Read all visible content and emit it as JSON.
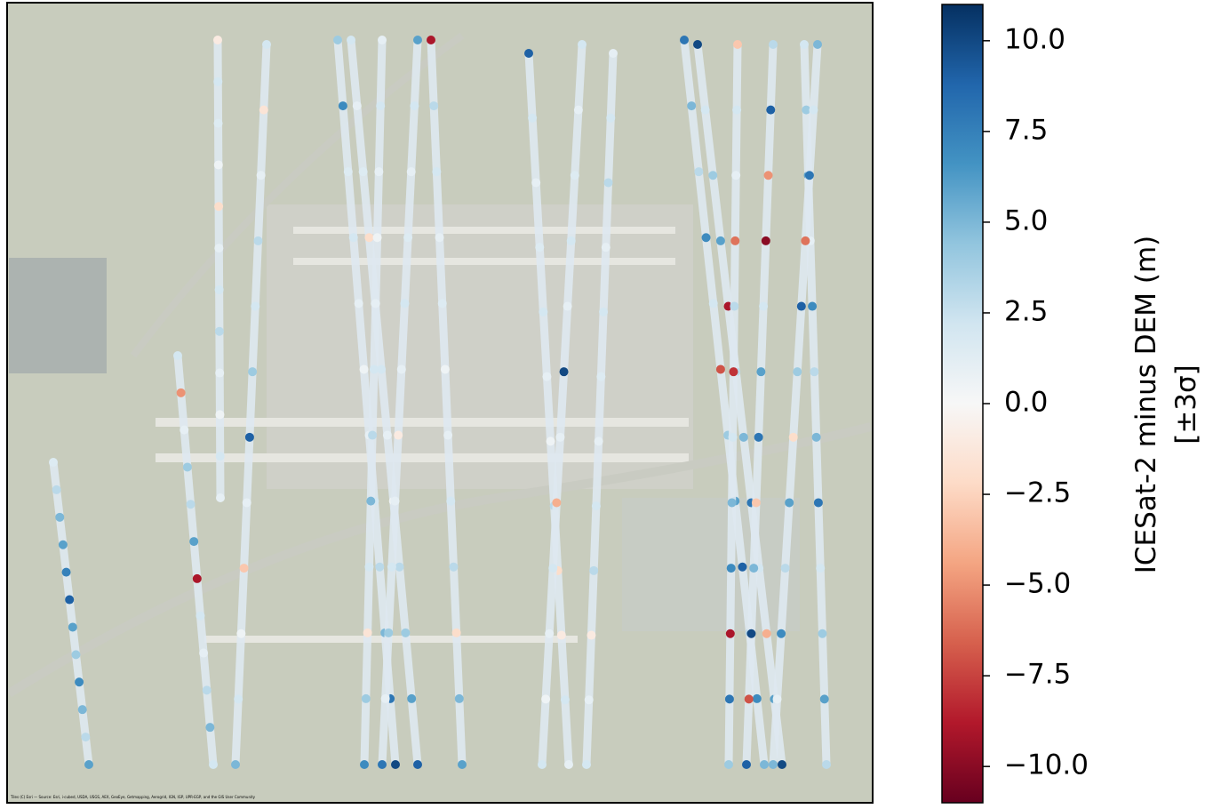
{
  "map": {
    "attribution": "Tiles (C) Esri — Source: Esri, i-cubed, USDA, USGS, AEX, GeoEye, Getmapping, Aerogrid, IGN, IGP, UPR-EGP, and the GIS User Community",
    "tracks": [
      {
        "values": [
          1.5,
          3,
          5,
          6,
          7.5,
          9,
          6,
          4,
          7,
          5,
          3,
          6
        ]
      },
      {
        "values": [
          -1,
          2,
          1.5,
          0.5,
          -2,
          1,
          2,
          3,
          1,
          0.5,
          2,
          1
        ]
      },
      {
        "values": [
          2,
          -1.5,
          1,
          3,
          2,
          4,
          9,
          1,
          -3,
          0.5,
          2,
          5
        ]
      },
      {
        "values": [
          4,
          7,
          1.5,
          2,
          1,
          0.5,
          1,
          2,
          3,
          5,
          8,
          10
        ]
      },
      {
        "values": [
          2,
          1,
          1.5,
          -2,
          1,
          2,
          1,
          0.5,
          3,
          4,
          6,
          9
        ]
      },
      {
        "values": [
          1,
          2,
          1,
          0.5,
          1,
          2,
          3,
          5,
          2,
          -1.5,
          4,
          7
        ]
      },
      {
        "values": [
          6,
          2,
          1,
          1.5,
          2,
          1,
          -1,
          1,
          2,
          4,
          1,
          8
        ]
      },
      {
        "values": [
          -9,
          3,
          2,
          1,
          1.5,
          0.5,
          1,
          2,
          3,
          -2,
          5,
          6
        ]
      },
      {
        "values": [
          9,
          2,
          1,
          1.5,
          2,
          1,
          0.5,
          3,
          -2,
          -1,
          2,
          1
        ]
      },
      {
        "values": [
          2,
          1,
          1.5,
          2,
          1,
          10,
          1,
          -4,
          2,
          1,
          0.5,
          2
        ]
      },
      {
        "values": [
          1,
          2,
          3,
          1,
          2,
          1.5,
          1,
          2,
          3,
          -1,
          1,
          2
        ]
      },
      {
        "values": [
          8,
          5,
          3,
          7,
          2,
          -7,
          4,
          6,
          9,
          3,
          7,
          5
        ]
      },
      {
        "values": [
          10,
          2,
          4,
          6,
          -9,
          3,
          5,
          8,
          2,
          -4,
          6,
          10
        ]
      },
      {
        "values": [
          -3,
          2,
          1,
          -6,
          3,
          -8,
          2,
          5,
          7,
          -9,
          8,
          4
        ]
      },
      {
        "values": [
          3,
          9,
          -5,
          -10,
          2,
          6,
          8,
          -3,
          5,
          10,
          -7,
          9
        ]
      },
      {
        "values": [
          2,
          4,
          6,
          1,
          7,
          3,
          5,
          8,
          2,
          4,
          6,
          3
        ]
      },
      {
        "values": [
          5,
          2,
          8,
          -6,
          9,
          4,
          -2,
          6,
          3,
          7,
          1,
          5
        ]
      },
      {
        "values": [
          2,
          -5,
          1,
          4,
          3,
          6,
          -9,
          2,
          1,
          3,
          5,
          2
        ]
      }
    ]
  },
  "colorbar": {
    "label_lines": [
      "ICESat-2 minus DEM (m)",
      "[±3σ]"
    ],
    "lim": [
      -11,
      11
    ],
    "colormap": [
      "#67001f",
      "#b2182b",
      "#d6604d",
      "#f4a582",
      "#fddbc7",
      "#f7f7f7",
      "#d1e5f0",
      "#92c5de",
      "#4393c3",
      "#2166ac",
      "#053061"
    ],
    "ticks": [
      {
        "value": -10,
        "label": "−10.0"
      },
      {
        "value": -7.5,
        "label": "−7.5"
      },
      {
        "value": -5,
        "label": "−5.0"
      },
      {
        "value": -2.5,
        "label": "−2.5"
      },
      {
        "value": 0,
        "label": "0.0"
      },
      {
        "value": 2.5,
        "label": "2.5"
      },
      {
        "value": 5,
        "label": "5.0"
      },
      {
        "value": 7.5,
        "label": "7.5"
      },
      {
        "value": 10,
        "label": "10.0"
      }
    ]
  }
}
